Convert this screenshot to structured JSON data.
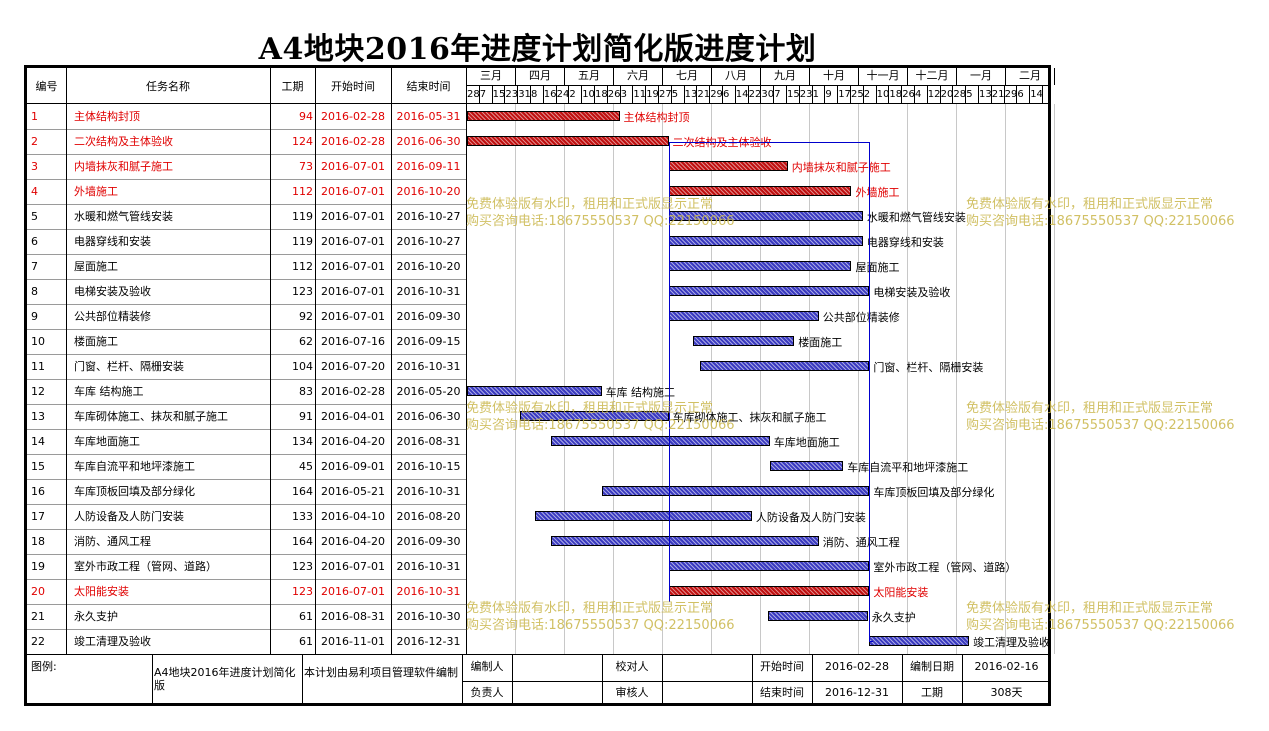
{
  "title": "A4地块2016年进度计划简化版进度计划",
  "headers": {
    "id": "编号",
    "name": "任务名称",
    "duration": "工期",
    "start": "开始时间",
    "end": "结束时间"
  },
  "months": [
    "三月",
    "四月",
    "五月",
    "六月",
    "七月",
    "八月",
    "九月",
    "十月",
    "十一月",
    "十二月",
    "一月",
    "二月"
  ],
  "days": [
    "28",
    "7",
    "15",
    "23",
    "31",
    "8",
    "16",
    "24",
    "2",
    "10",
    "18",
    "26",
    "3",
    "11",
    "19",
    "27",
    "5",
    "13",
    "21",
    "29",
    "6",
    "14",
    "22",
    "30",
    "7",
    "15",
    "23",
    "1",
    "9",
    "17",
    "25",
    "2",
    "10",
    "18",
    "26",
    "4",
    "12",
    "20",
    "28",
    "5",
    "13",
    "21",
    "29",
    "6",
    "14"
  ],
  "colors": {
    "critical": "#e00000",
    "normal_bar": "#3a3ac0",
    "critical_bar": "#c01010",
    "link": "#0000cc",
    "watermark": "#c9b64a"
  },
  "tasks": [
    {
      "id": "1",
      "name": "主体结构封顶",
      "duration": "94",
      "start": "2016-02-28",
      "end": "2016-05-31",
      "critical": true
    },
    {
      "id": "2",
      "name": "二次结构及主体验收",
      "duration": "124",
      "start": "2016-02-28",
      "end": "2016-06-30",
      "critical": true
    },
    {
      "id": "3",
      "name": "内墙抹灰和腻子施工",
      "duration": "73",
      "start": "2016-07-01",
      "end": "2016-09-11",
      "critical": true
    },
    {
      "id": "4",
      "name": "外墙施工",
      "duration": "112",
      "start": "2016-07-01",
      "end": "2016-10-20",
      "critical": true
    },
    {
      "id": "5",
      "name": "水暖和燃气管线安装",
      "duration": "119",
      "start": "2016-07-01",
      "end": "2016-10-27",
      "critical": false
    },
    {
      "id": "6",
      "name": "电器穿线和安装",
      "duration": "119",
      "start": "2016-07-01",
      "end": "2016-10-27",
      "critical": false
    },
    {
      "id": "7",
      "name": "屋面施工",
      "duration": "112",
      "start": "2016-07-01",
      "end": "2016-10-20",
      "critical": false
    },
    {
      "id": "8",
      "name": "电梯安装及验收",
      "duration": "123",
      "start": "2016-07-01",
      "end": "2016-10-31",
      "critical": false
    },
    {
      "id": "9",
      "name": "公共部位精装修",
      "duration": "92",
      "start": "2016-07-01",
      "end": "2016-09-30",
      "critical": false
    },
    {
      "id": "10",
      "name": "楼面施工",
      "duration": "62",
      "start": "2016-07-16",
      "end": "2016-09-15",
      "critical": false
    },
    {
      "id": "11",
      "name": "门窗、栏杆、隔栅安装",
      "duration": "104",
      "start": "2016-07-20",
      "end": "2016-10-31",
      "critical": false
    },
    {
      "id": "12",
      "name": "车库 结构施工",
      "duration": "83",
      "start": "2016-02-28",
      "end": "2016-05-20",
      "critical": false
    },
    {
      "id": "13",
      "name": "车库砌体施工、抹灰和腻子施工",
      "duration": "91",
      "start": "2016-04-01",
      "end": "2016-06-30",
      "critical": false
    },
    {
      "id": "14",
      "name": "车库地面施工",
      "duration": "134",
      "start": "2016-04-20",
      "end": "2016-08-31",
      "critical": false
    },
    {
      "id": "15",
      "name": "车库自流平和地坪漆施工",
      "duration": "45",
      "start": "2016-09-01",
      "end": "2016-10-15",
      "critical": false
    },
    {
      "id": "16",
      "name": "车库顶板回填及部分绿化",
      "duration": "164",
      "start": "2016-05-21",
      "end": "2016-10-31",
      "critical": false
    },
    {
      "id": "17",
      "name": "人防设备及人防门安装",
      "duration": "133",
      "start": "2016-04-10",
      "end": "2016-08-20",
      "critical": false
    },
    {
      "id": "18",
      "name": "消防、通风工程",
      "duration": "164",
      "start": "2016-04-20",
      "end": "2016-09-30",
      "critical": false
    },
    {
      "id": "19",
      "name": "室外市政工程（管网、道路）",
      "duration": "123",
      "start": "2016-07-01",
      "end": "2016-10-31",
      "critical": false
    },
    {
      "id": "20",
      "name": "太阳能安装",
      "duration": "123",
      "start": "2016-07-01",
      "end": "2016-10-31",
      "critical": true
    },
    {
      "id": "21",
      "name": "永久支护",
      "duration": "61",
      "start": "2016-08-31",
      "end": "2016-10-30",
      "critical": false
    },
    {
      "id": "22",
      "name": "竣工清理及验收",
      "duration": "61",
      "start": "2016-11-01",
      "end": "2016-12-31",
      "critical": false
    }
  ],
  "footer": {
    "legend_label": "图例:",
    "plan_name": "A4地块2016年进度计划简化版",
    "software_note": "本计划由易利项目管理软件编制",
    "made_by_label": "编制人",
    "check_label": "校对人",
    "start_label": "开始时间",
    "start_value": "2016-02-28",
    "date_label": "编制日期",
    "date_value": "2016-02-16",
    "owner_label": "负责人",
    "review_label": "审核人",
    "end_label": "结束时间",
    "end_value": "2016-12-31",
    "duration_label": "工期",
    "duration_value": "308天"
  },
  "watermark": {
    "line1": "免费体验版有水印，租用和正式版显示正常",
    "line2": "购买咨询电话:18675550537 QQ:22150066"
  }
}
